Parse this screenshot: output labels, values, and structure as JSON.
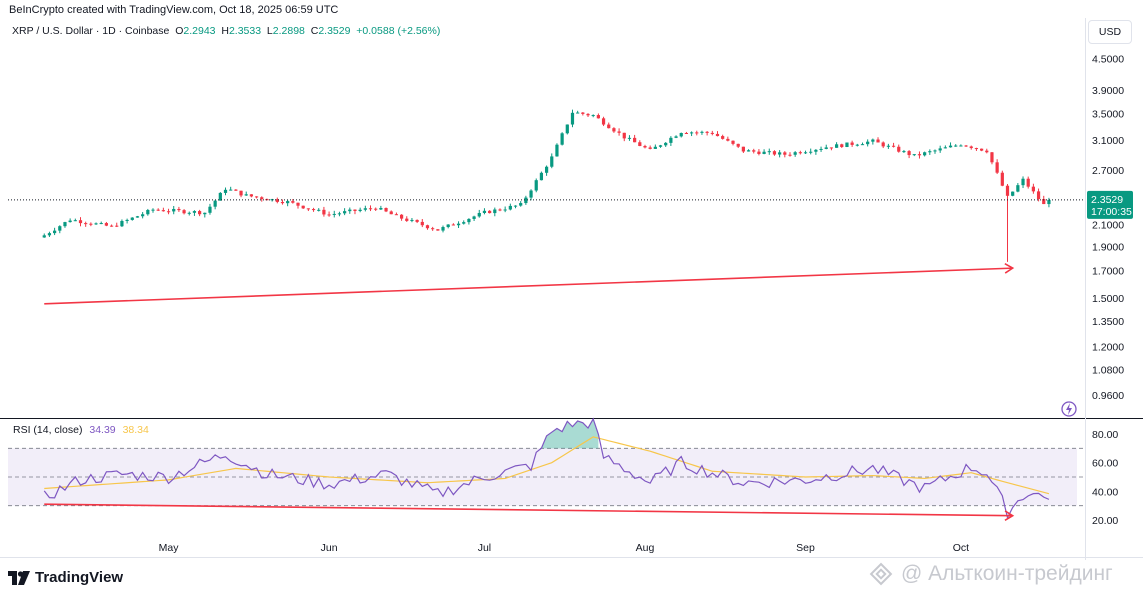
{
  "header": {
    "credit": "BeInCrypto created with TradingView.com, Oct 18, 2025 06:59 UTC"
  },
  "legend": {
    "symbol": "XRP / U.S. Dollar · 1D · Coinbase",
    "o_label": "O",
    "o": "2.2943",
    "h_label": "H",
    "h": "2.3533",
    "l_label": "L",
    "l": "2.2898",
    "c_label": "C",
    "c": "2.3529",
    "change": "+0.0588 (+2.56%)"
  },
  "currency_button": "USD",
  "price_tag": {
    "price": "2.3529",
    "countdown": "17:00:35"
  },
  "rsi_legend": {
    "label": "RSI (14, close)",
    "rsi": "34.39",
    "ma": "38.34"
  },
  "brand": "TradingView",
  "watermark": "@ Альткоин-трейдинг",
  "colors": {
    "up": "#089981",
    "down": "#f23645",
    "rsi": "#7e57c2",
    "rsi_ma": "#f7c64b",
    "trend": "#f23645"
  },
  "chart_data": [
    {
      "type": "candlestick",
      "title": "XRP / U.S. Dollar · 1D · Coinbase",
      "y_scale": "log",
      "y_ticks": [
        "4.5000",
        "3.9000",
        "3.5000",
        "3.1000",
        "2.7000",
        "2.3529",
        "2.1000",
        "1.9000",
        "1.7000",
        "1.5000",
        "1.3500",
        "1.2000",
        "1.0800",
        "0.9600"
      ],
      "x_ticks": [
        "May",
        "Jun",
        "Jul",
        "Aug",
        "Sep",
        "Oct"
      ],
      "last_close": 2.3529,
      "anchors": [
        [
          "2025-04-07",
          2.0
        ],
        [
          "2025-04-12",
          2.15
        ],
        [
          "2025-04-20",
          2.08
        ],
        [
          "2025-04-28",
          2.25
        ],
        [
          "2025-05-08",
          2.22
        ],
        [
          "2025-05-12",
          2.48
        ],
        [
          "2025-05-16",
          2.4
        ],
        [
          "2025-05-24",
          2.33
        ],
        [
          "2025-06-01",
          2.2
        ],
        [
          "2025-06-10",
          2.27
        ],
        [
          "2025-06-14",
          2.18
        ],
        [
          "2025-06-22",
          2.05
        ],
        [
          "2025-07-01",
          2.22
        ],
        [
          "2025-07-08",
          2.3
        ],
        [
          "2025-07-14",
          2.86
        ],
        [
          "2025-07-18",
          3.52
        ],
        [
          "2025-07-22",
          3.47
        ],
        [
          "2025-07-28",
          3.14
        ],
        [
          "2025-08-02",
          2.95
        ],
        [
          "2025-08-08",
          3.22
        ],
        [
          "2025-08-14",
          3.2
        ],
        [
          "2025-08-20",
          2.95
        ],
        [
          "2025-08-28",
          2.9
        ],
        [
          "2025-09-05",
          3.0
        ],
        [
          "2025-09-14",
          3.08
        ],
        [
          "2025-09-22",
          2.88
        ],
        [
          "2025-10-01",
          3.04
        ],
        [
          "2025-10-06",
          2.95
        ],
        [
          "2025-10-10",
          2.38
        ],
        [
          "2025-10-13",
          2.58
        ],
        [
          "2025-10-17",
          2.3
        ],
        [
          "2025-10-18",
          2.3529
        ]
      ],
      "annotations": [
        {
          "type": "arrow",
          "label": "",
          "from": [
            "2025-04-07",
            1.46
          ],
          "to": [
            "2025-10-11",
            1.72
          ]
        }
      ]
    },
    {
      "type": "line",
      "title": "RSI (14, close)",
      "y_ticks": [
        "80.00",
        "60.00",
        "40.00",
        "20.00"
      ],
      "bands": [
        70,
        50,
        30
      ],
      "series": [
        {
          "name": "RSI",
          "anchors": [
            [
              "2025-04-07",
              36
            ],
            [
              "2025-04-14",
              48
            ],
            [
              "2025-04-22",
              52
            ],
            [
              "2025-05-01",
              50
            ],
            [
              "2025-05-12",
              66
            ],
            [
              "2025-05-20",
              52
            ],
            [
              "2025-06-01",
              45
            ],
            [
              "2025-06-12",
              52
            ],
            [
              "2025-06-22",
              38
            ],
            [
              "2025-07-01",
              50
            ],
            [
              "2025-07-10",
              58
            ],
            [
              "2025-07-14",
              82
            ],
            [
              "2025-07-18",
              87
            ],
            [
              "2025-07-22",
              88
            ],
            [
              "2025-07-24",
              64
            ],
            [
              "2025-08-02",
              46
            ],
            [
              "2025-08-08",
              60
            ],
            [
              "2025-08-20",
              46
            ],
            [
              "2025-09-01",
              48
            ],
            [
              "2025-09-14",
              56
            ],
            [
              "2025-09-24",
              42
            ],
            [
              "2025-10-03",
              57
            ],
            [
              "2025-10-06",
              53
            ],
            [
              "2025-10-10",
              26
            ],
            [
              "2025-10-14",
              40
            ],
            [
              "2025-10-18",
              34.39
            ]
          ]
        },
        {
          "name": "RSI-based MA",
          "anchors": [
            [
              "2025-04-07",
              42
            ],
            [
              "2025-05-01",
              48
            ],
            [
              "2025-05-14",
              56
            ],
            [
              "2025-06-01",
              50
            ],
            [
              "2025-06-20",
              46
            ],
            [
              "2025-07-05",
              49
            ],
            [
              "2025-07-14",
              60
            ],
            [
              "2025-07-22",
              78
            ],
            [
              "2025-08-02",
              68
            ],
            [
              "2025-08-14",
              54
            ],
            [
              "2025-09-01",
              50
            ],
            [
              "2025-09-14",
              51
            ],
            [
              "2025-09-24",
              49
            ],
            [
              "2025-10-03",
              53
            ],
            [
              "2025-10-10",
              46
            ],
            [
              "2025-10-18",
              38.34
            ]
          ]
        }
      ],
      "annotations": [
        {
          "type": "arrow",
          "label": "",
          "from": [
            "2025-04-07",
            31
          ],
          "to": [
            "2025-10-11",
            23
          ]
        }
      ]
    }
  ]
}
